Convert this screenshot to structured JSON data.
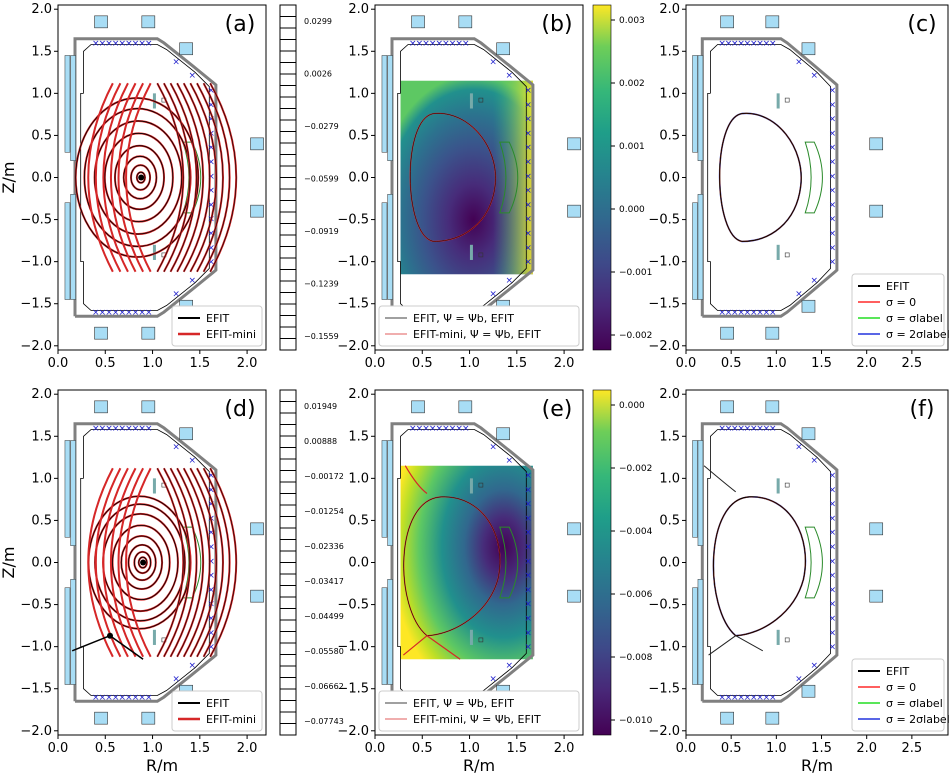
{
  "figure": {
    "panels": [
      {
        "id": "a",
        "label": "(a)",
        "xticks": [
          "0.0",
          "0.5",
          "1.0",
          "1.5",
          "2.0"
        ],
        "yticks": [
          "−2.0",
          "−1.5",
          "−1.0",
          "−0.5",
          "0.0",
          "0.5",
          "1.0",
          "1.5",
          "2.0"
        ],
        "ylabel": "Z/m",
        "xlabel": "",
        "legend": [
          "EFIT",
          "EFIT-mini"
        ],
        "type": "flux-contours",
        "xpoint": false
      },
      {
        "id": "b",
        "label": "(b)",
        "xticks": [
          "0.0",
          "0.5",
          "1.0",
          "1.5",
          "2.0"
        ],
        "yticks": [
          "−2.0",
          "−1.5",
          "−1.0",
          "−0.5",
          "0.0",
          "0.5",
          "1.0",
          "1.5",
          "2.0"
        ],
        "ylabel": "",
        "xlabel": "",
        "legend": [
          "EFIT, Ψ = Ψb, EFIT",
          "EFIT-mini, Ψ = Ψb, EFIT"
        ],
        "type": "residual-map",
        "xpoint": false
      },
      {
        "id": "c",
        "label": "(c)",
        "xticks": [
          "0.0",
          "0.5",
          "1.0",
          "1.5",
          "2.0",
          "2.5"
        ],
        "yticks": [
          "−2.0",
          "−1.5",
          "−1.0",
          "−0.5",
          "0.0",
          "0.5",
          "1.0",
          "1.5",
          "2.0"
        ],
        "ylabel": "",
        "xlabel": "",
        "legend": [
          "EFIT",
          "σ = 0",
          "σ = σlabel",
          "σ = 2σlabel"
        ],
        "type": "boundary",
        "xpoint": false
      },
      {
        "id": "d",
        "label": "(d)",
        "xticks": [
          "0.0",
          "0.5",
          "1.0",
          "1.5",
          "2.0"
        ],
        "yticks": [
          "−2.0",
          "−1.5",
          "−1.0",
          "−0.5",
          "0.0",
          "0.5",
          "1.0",
          "1.5",
          "2.0"
        ],
        "ylabel": "Z/m",
        "xlabel": "R/m",
        "legend": [
          "EFIT",
          "EFIT-mini"
        ],
        "type": "flux-contours",
        "xpoint": true
      },
      {
        "id": "e",
        "label": "(e)",
        "xticks": [
          "0.0",
          "0.5",
          "1.0",
          "1.5",
          "2.0"
        ],
        "yticks": [
          "−2.0",
          "−1.5",
          "−1.0",
          "−0.5",
          "0.0",
          "0.5",
          "1.0",
          "1.5",
          "2.0"
        ],
        "ylabel": "",
        "xlabel": "R/m",
        "legend": [
          "EFIT, Ψ = Ψb, EFIT",
          "EFIT-mini, Ψ = Ψb, EFIT"
        ],
        "type": "residual-map",
        "xpoint": true
      },
      {
        "id": "f",
        "label": "(f)",
        "xticks": [
          "0.0",
          "0.5",
          "1.0",
          "1.5",
          "2.0",
          "2.5"
        ],
        "yticks": [
          "−2.0",
          "−1.5",
          "−1.0",
          "−0.5",
          "0.0",
          "0.5",
          "1.0",
          "1.5",
          "2.0"
        ],
        "ylabel": "",
        "xlabel": "R/m",
        "legend": [
          "EFIT",
          "σ = 0",
          "σ = σlabel",
          "σ = 2σlabel"
        ],
        "type": "boundary",
        "xpoint": true
      }
    ],
    "contour_levels_top": [
      "0.0299",
      "0.0026",
      "−0.0279",
      "−0.0599",
      "−0.0919",
      "−0.1239",
      "−0.1559"
    ],
    "contour_levels_bottom": [
      "0.01949",
      "0.00888",
      "−0.00172",
      "−0.01254",
      "−0.02336",
      "−0.03417",
      "−0.04499",
      "−0.05580",
      "−0.06662",
      "−0.07743"
    ],
    "colorbar_top": [
      "0.003",
      "0.002",
      "0.001",
      "0.000",
      "−0.001",
      "−0.002"
    ],
    "colorbar_bottom": [
      "0.000",
      "−0.002",
      "−0.004",
      "−0.006",
      "−0.008",
      "−0.010"
    ],
    "colors": {
      "efit": "#000000",
      "efit_mini": "#d62728",
      "sigma0": "#ff2a2a",
      "sigma_label": "#22dd22",
      "sigma2": "#2233dd",
      "vessel": "#808080",
      "coil": "#a8ddf5",
      "probe": "#1f1fcc"
    }
  },
  "chart_data": [
    {
      "type": "line",
      "title": "(a)",
      "xlabel": "",
      "ylabel": "Z/m",
      "xlim": [
        0,
        2.2
      ],
      "ylim": [
        -2.0,
        2.0
      ],
      "series": [
        {
          "name": "EFIT"
        },
        {
          "name": "EFIT-mini"
        }
      ],
      "magnetic_axis": {
        "x": 0.88,
        "y": 0.0
      }
    },
    {
      "type": "heatmap",
      "title": "(b)",
      "xlim": [
        0,
        2.2
      ],
      "ylim": [
        -2.0,
        2.0
      ],
      "colorbar_range": [
        -0.0027,
        0.0032
      ],
      "series": [
        {
          "name": "EFIT, Ψ = Ψb, EFIT"
        },
        {
          "name": "EFIT-mini, Ψ = Ψb, EFIT"
        }
      ]
    },
    {
      "type": "line",
      "title": "(c)",
      "xlim": [
        0,
        2.9
      ],
      "ylim": [
        -2.0,
        2.0
      ],
      "series": [
        {
          "name": "EFIT"
        },
        {
          "name": "σ = 0"
        },
        {
          "name": "σ = σlabel"
        },
        {
          "name": "σ = 2σlabel"
        }
      ]
    },
    {
      "type": "line",
      "title": "(d)",
      "xlabel": "R/m",
      "ylabel": "Z/m",
      "xlim": [
        0,
        2.2
      ],
      "ylim": [
        -2.0,
        2.0
      ],
      "series": [
        {
          "name": "EFIT"
        },
        {
          "name": "EFIT-mini"
        }
      ],
      "magnetic_axis": {
        "x": 0.9,
        "y": 0.0
      },
      "x_point": {
        "x": 0.55,
        "y": -0.87
      }
    },
    {
      "type": "heatmap",
      "title": "(e)",
      "xlabel": "R/m",
      "xlim": [
        0,
        2.2
      ],
      "ylim": [
        -2.0,
        2.0
      ],
      "colorbar_range": [
        -0.0107,
        0.0007
      ],
      "series": [
        {
          "name": "EFIT, Ψ = Ψb, EFIT"
        },
        {
          "name": "EFIT-mini, Ψ = Ψb, EFIT"
        }
      ]
    },
    {
      "type": "line",
      "title": "(f)",
      "xlabel": "R/m",
      "xlim": [
        0,
        2.9
      ],
      "ylim": [
        -2.0,
        2.0
      ],
      "series": [
        {
          "name": "EFIT"
        },
        {
          "name": "σ = 0"
        },
        {
          "name": "σ = σlabel"
        },
        {
          "name": "σ = 2σlabel"
        }
      ],
      "x_point": {
        "x": 0.55,
        "y": -0.87
      }
    }
  ]
}
